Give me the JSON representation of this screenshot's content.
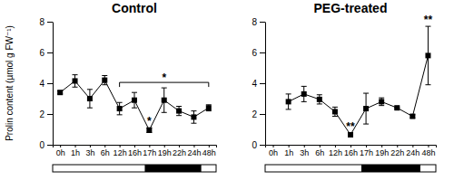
{
  "chart_data": [
    {
      "type": "line",
      "title": "Control",
      "y_label": "Prolin content (µmol g FW⁻¹)",
      "categories": [
        "0h",
        "1h",
        "3h",
        "6h",
        "12h",
        "16h",
        "17h",
        "19h",
        "22h",
        "24h",
        "48h"
      ],
      "series": [
        {
          "color": "#000000",
          "marker": "square",
          "values": [
            3.4,
            4.15,
            3.0,
            4.2,
            2.35,
            2.9,
            0.95,
            2.9,
            2.2,
            1.8,
            2.4
          ],
          "errors": [
            0.1,
            0.4,
            0.6,
            0.3,
            0.4,
            0.5,
            0.15,
            0.8,
            0.3,
            0.4,
            0.2
          ]
        }
      ],
      "ylim": [
        0,
        8
      ],
      "yticks": [
        0,
        2,
        4,
        6,
        8
      ],
      "grid": false,
      "annotations": [
        {
          "text": "*",
          "category": "17h"
        },
        {
          "text": "*",
          "from": "12h",
          "to": "48h"
        }
      ],
      "dark_period": {
        "from": "17h",
        "to": "24h"
      }
    },
    {
      "type": "line",
      "title": "PEG-treated",
      "categories": [
        "0h",
        "1h",
        "3h",
        "6h",
        "12h",
        "16h",
        "17h",
        "19h",
        "22h",
        "24h",
        "48h"
      ],
      "series": [
        {
          "color": "#000000",
          "marker": "square",
          "values": [
            null,
            2.8,
            3.3,
            2.95,
            2.15,
            0.65,
            2.35,
            2.8,
            2.4,
            1.85,
            5.8
          ],
          "errors": [
            null,
            0.5,
            0.5,
            0.3,
            0.3,
            0.1,
            1.0,
            0.25,
            0.05,
            0.1,
            1.9
          ]
        }
      ],
      "ylim": [
        0,
        8
      ],
      "yticks": [
        0,
        2,
        4,
        6,
        8
      ],
      "grid": false,
      "annotations": [
        {
          "text": "**",
          "category": "16h"
        },
        {
          "text": "**",
          "category": "48h"
        }
      ],
      "dark_period": {
        "from": "17h",
        "to": "24h"
      }
    }
  ]
}
